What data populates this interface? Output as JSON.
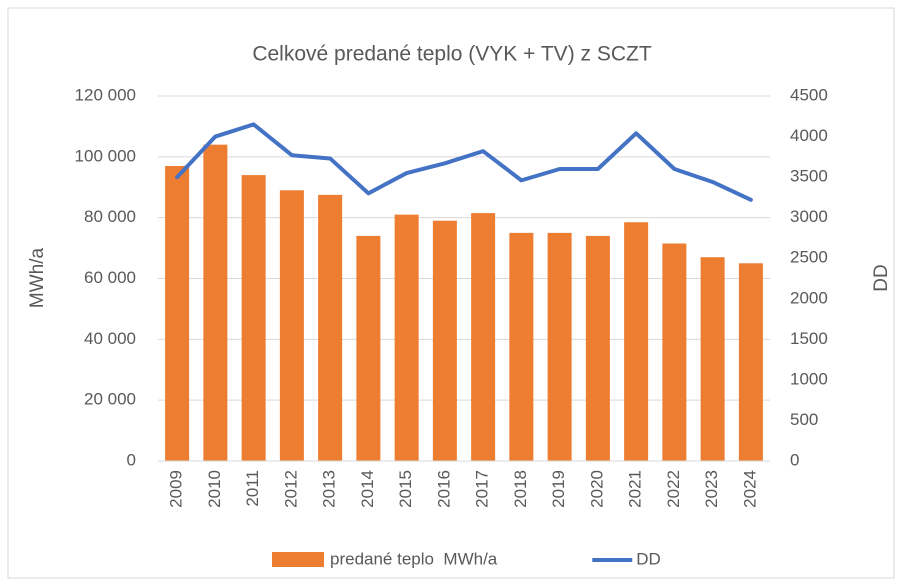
{
  "chart_data": {
    "type": "bar_line",
    "title": "Celkové predané teplo (VYK + TV) z SCZT",
    "categories": [
      "2009",
      "2010",
      "2011",
      "2012",
      "2013",
      "2014",
      "2015",
      "2016",
      "2017",
      "2018",
      "2019",
      "2020",
      "2021",
      "2022",
      "2023",
      "2024"
    ],
    "series": [
      {
        "name": "predané teplo  MWh/a",
        "type": "bar",
        "color": "#ed7d31",
        "axis": "y",
        "values": [
          97000,
          104000,
          94000,
          89000,
          87500,
          74000,
          81000,
          79000,
          81500,
          75000,
          75000,
          74000,
          78500,
          71500,
          67000,
          65000
        ]
      },
      {
        "name": "DD",
        "type": "line",
        "color": "#4472c4",
        "axis": "y2",
        "values": [
          3500,
          4000,
          4150,
          3770,
          3730,
          3300,
          3550,
          3670,
          3820,
          3460,
          3600,
          3600,
          4040,
          3600,
          3440,
          3220
        ]
      }
    ],
    "ylabel": "MWh/a",
    "y2label": "DD",
    "ylim": [
      0,
      120000
    ],
    "yticks": [
      0,
      {
        "value": 20000,
        "label": "20 000"
      },
      {
        "value": 40000,
        "label": "40 000"
      },
      {
        "value": 60000,
        "label": "60 000"
      },
      {
        "value": 80000,
        "label": "80 000"
      },
      {
        "value": 100000,
        "label": "100 000"
      },
      {
        "value": 120000,
        "label": "120 000"
      }
    ],
    "y2lim": [
      0,
      4500
    ],
    "y2ticks": [
      0,
      500,
      1000,
      1500,
      2000,
      2500,
      3000,
      3500,
      4000,
      4500
    ],
    "grid": true,
    "legend": "bottom"
  }
}
